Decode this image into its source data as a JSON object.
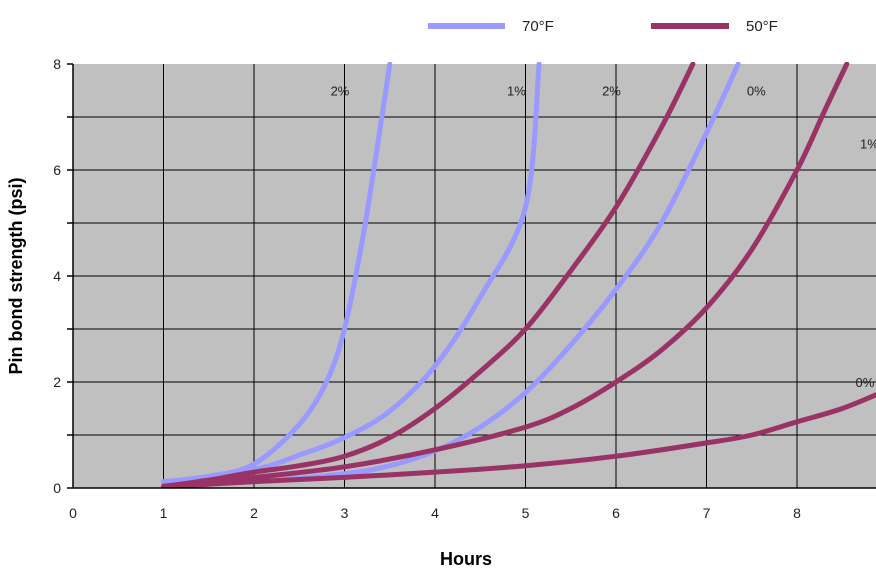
{
  "chart_data": {
    "type": "line",
    "xlabel": "Hours",
    "ylabel": "Pin bond strength (psi)",
    "xlim": [
      0,
      9
    ],
    "ylim": [
      0,
      8
    ],
    "x_ticks": [
      "0",
      "1",
      "2",
      "3",
      "4",
      "5",
      "6",
      "7",
      "8"
    ],
    "y_ticks": [
      "0",
      "2",
      "4",
      "6",
      "8"
    ],
    "grid": true,
    "plot_background": "#c0c0c0",
    "legend": {
      "placement": "top",
      "entries": [
        {
          "label": "70°F",
          "color": "#9999ff"
        },
        {
          "label": "50°F",
          "color": "#993366"
        }
      ]
    },
    "series": [
      {
        "group": "70°F",
        "label": "2%",
        "color": "#9999ff",
        "points": [
          [
            1,
            0.12
          ],
          [
            1.5,
            0.22
          ],
          [
            2,
            0.45
          ],
          [
            2.5,
            1.2
          ],
          [
            2.8,
            2.0
          ],
          [
            3,
            3.0
          ],
          [
            3.2,
            4.7
          ],
          [
            3.35,
            6.3
          ],
          [
            3.5,
            8.0
          ]
        ]
      },
      {
        "group": "70°F",
        "label": "1%",
        "color": "#9999ff",
        "points": [
          [
            1,
            0.1
          ],
          [
            2,
            0.35
          ],
          [
            2.5,
            0.62
          ],
          [
            3,
            0.95
          ],
          [
            3.5,
            1.45
          ],
          [
            4,
            2.3
          ],
          [
            4.5,
            3.6
          ],
          [
            5,
            5.3
          ],
          [
            5.15,
            8.0
          ]
        ]
      },
      {
        "group": "70°F",
        "label": "0%",
        "color": "#9999ff",
        "points": [
          [
            1,
            0.05
          ],
          [
            2,
            0.12
          ],
          [
            3,
            0.27
          ],
          [
            3.5,
            0.42
          ],
          [
            4,
            0.7
          ],
          [
            4.5,
            1.15
          ],
          [
            5,
            1.8
          ],
          [
            5.5,
            2.7
          ],
          [
            6,
            3.75
          ],
          [
            6.5,
            5.0
          ],
          [
            7,
            6.7
          ],
          [
            7.35,
            8.0
          ]
        ]
      },
      {
        "group": "50°F",
        "label": "2%",
        "color": "#993366",
        "points": [
          [
            1,
            0.03
          ],
          [
            1.5,
            0.15
          ],
          [
            2,
            0.3
          ],
          [
            2.5,
            0.42
          ],
          [
            3,
            0.6
          ],
          [
            3.5,
            0.95
          ],
          [
            4,
            1.5
          ],
          [
            4.5,
            2.2
          ],
          [
            5,
            3.0
          ],
          [
            5.5,
            4.1
          ],
          [
            6,
            5.3
          ],
          [
            6.5,
            6.8
          ],
          [
            6.85,
            8.0
          ]
        ]
      },
      {
        "group": "50°F",
        "label": "1%",
        "color": "#993366",
        "points": [
          [
            1,
            0.03
          ],
          [
            2,
            0.2
          ],
          [
            3,
            0.4
          ],
          [
            4,
            0.72
          ],
          [
            5,
            1.15
          ],
          [
            5.5,
            1.5
          ],
          [
            6,
            2.0
          ],
          [
            6.5,
            2.6
          ],
          [
            7,
            3.4
          ],
          [
            7.5,
            4.5
          ],
          [
            8,
            6.0
          ],
          [
            8.3,
            7.1
          ],
          [
            8.55,
            8.0
          ]
        ]
      },
      {
        "group": "50°F",
        "label": "0%",
        "color": "#993366",
        "points": [
          [
            1,
            0.02
          ],
          [
            2,
            0.12
          ],
          [
            3,
            0.2
          ],
          [
            4,
            0.3
          ],
          [
            5,
            0.42
          ],
          [
            6,
            0.6
          ],
          [
            7,
            0.85
          ],
          [
            7.5,
            1.0
          ],
          [
            8,
            1.25
          ],
          [
            8.5,
            1.5
          ],
          [
            9,
            1.85
          ]
        ]
      }
    ],
    "curve_labels": [
      {
        "text": "2%",
        "x": 2.95,
        "y": 7.5
      },
      {
        "text": "1%",
        "x": 4.9,
        "y": 7.5
      },
      {
        "text": "2%",
        "x": 5.95,
        "y": 7.5
      },
      {
        "text": "0%",
        "x": 7.55,
        "y": 7.5
      },
      {
        "text": "1%",
        "x": 8.8,
        "y": 6.5
      },
      {
        "text": "0%",
        "x": 8.75,
        "y": 2.0
      }
    ]
  }
}
